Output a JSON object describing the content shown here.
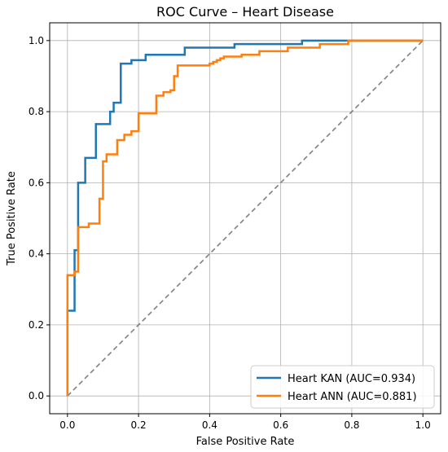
{
  "chart_data": {
    "type": "line",
    "title": "ROC Curve – Heart Disease",
    "xlabel": "False Positive Rate",
    "ylabel": "True Positive Rate",
    "xlim": [
      -0.05,
      1.05
    ],
    "ylim": [
      -0.05,
      1.05
    ],
    "xticks": [
      "0.0",
      "0.2",
      "0.4",
      "0.6",
      "0.8",
      "1.0"
    ],
    "yticks": [
      "0.0",
      "0.2",
      "0.4",
      "0.6",
      "0.8",
      "1.0"
    ],
    "grid": true,
    "legend_position": "lower-right",
    "series": [
      {
        "name": "Heart KAN (AUC=0.934)",
        "color": "#1f77b4",
        "x": [
          0.0,
          0.0,
          0.0,
          0.02,
          0.02,
          0.03,
          0.03,
          0.05,
          0.05,
          0.08,
          0.08,
          0.12,
          0.12,
          0.13,
          0.13,
          0.15,
          0.15,
          0.18,
          0.18,
          0.22,
          0.22,
          0.33,
          0.33,
          0.47,
          0.47,
          0.66,
          0.66,
          0.78,
          0.78,
          1.0
        ],
        "y": [
          0.0,
          0.0,
          0.24,
          0.24,
          0.41,
          0.41,
          0.6,
          0.6,
          0.67,
          0.67,
          0.765,
          0.765,
          0.8,
          0.8,
          0.825,
          0.825,
          0.935,
          0.935,
          0.945,
          0.945,
          0.96,
          0.96,
          0.98,
          0.98,
          0.99,
          0.99,
          1.0,
          1.0,
          1.0,
          1.0
        ]
      },
      {
        "name": "Heart ANN (AUC=0.881)",
        "color": "#ff7f0e",
        "x": [
          0.0,
          0.0,
          0.02,
          0.02,
          0.03,
          0.03,
          0.06,
          0.06,
          0.09,
          0.09,
          0.1,
          0.1,
          0.11,
          0.11,
          0.14,
          0.14,
          0.16,
          0.16,
          0.18,
          0.18,
          0.2,
          0.2,
          0.25,
          0.25,
          0.27,
          0.27,
          0.29,
          0.29,
          0.3,
          0.3,
          0.31,
          0.31,
          0.4,
          0.4,
          0.41,
          0.41,
          0.42,
          0.42,
          0.43,
          0.43,
          0.44,
          0.44,
          0.49,
          0.49,
          0.54,
          0.54,
          0.62,
          0.62,
          0.71,
          0.71,
          0.79,
          0.79,
          1.0
        ],
        "y": [
          0.0,
          0.34,
          0.34,
          0.35,
          0.35,
          0.475,
          0.475,
          0.485,
          0.485,
          0.555,
          0.555,
          0.66,
          0.66,
          0.68,
          0.68,
          0.72,
          0.72,
          0.735,
          0.735,
          0.745,
          0.745,
          0.795,
          0.795,
          0.845,
          0.845,
          0.855,
          0.855,
          0.86,
          0.86,
          0.9,
          0.9,
          0.93,
          0.93,
          0.935,
          0.935,
          0.94,
          0.94,
          0.945,
          0.945,
          0.95,
          0.95,
          0.955,
          0.955,
          0.96,
          0.96,
          0.97,
          0.97,
          0.98,
          0.98,
          0.99,
          0.99,
          1.0,
          1.0
        ]
      }
    ],
    "reference_line": {
      "x": [
        0.0,
        1.0
      ],
      "y": [
        0.0,
        1.0
      ],
      "color": "#808080",
      "style": "dashed"
    }
  }
}
